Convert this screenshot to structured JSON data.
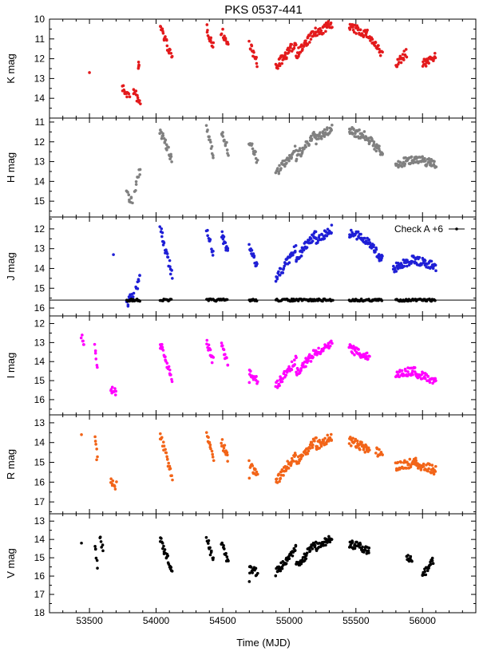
{
  "chart_data": {
    "type": "scatter",
    "title": "PKS 0537-441",
    "xlabel": "Time (MJD)",
    "xlim": [
      53200,
      56400
    ],
    "xticks": [
      53500,
      54000,
      54500,
      55000,
      55500,
      56000
    ],
    "panels": [
      {
        "id": "K",
        "ylabel": "K mag",
        "color": "#e31a1c",
        "ylim": [
          10,
          15
        ],
        "yticks": [
          10,
          11,
          12,
          13,
          14
        ],
        "segments": [
          {
            "x": [
              53870,
              53870
            ],
            "y": [
              12.3,
              12.3
            ]
          },
          {
            "x": [
              53745,
              53800
            ],
            "y": [
              13.5,
              13.9
            ]
          },
          {
            "x": [
              53830,
              53880
            ],
            "y": [
              13.6,
              14.3
            ]
          },
          {
            "x": [
              54030,
              54120
            ],
            "y": [
              10.3,
              12.0
            ]
          },
          {
            "x": [
              54380,
              54430
            ],
            "y": [
              10.4,
              11.4
            ]
          },
          {
            "x": [
              54490,
              54540
            ],
            "y": [
              10.6,
              11.3
            ]
          },
          {
            "x": [
              54700,
              54760
            ],
            "y": [
              11.2,
              12.3
            ]
          },
          {
            "x": [
              54900,
              55050
            ],
            "y": [
              12.4,
              11.2
            ]
          },
          {
            "x": [
              55050,
              55200
            ],
            "y": [
              11.8,
              10.6
            ]
          },
          {
            "x": [
              55200,
              55320
            ],
            "y": [
              10.8,
              10.2
            ]
          },
          {
            "x": [
              55450,
              55600
            ],
            "y": [
              10.4,
              10.8
            ]
          },
          {
            "x": [
              55600,
              55700
            ],
            "y": [
              10.9,
              11.8
            ]
          },
          {
            "x": [
              55800,
              55880
            ],
            "y": [
              12.3,
              11.7
            ]
          },
          {
            "x": [
              56000,
              56100
            ],
            "y": [
              12.3,
              11.8
            ]
          }
        ],
        "points": [
          [
            53500,
            12.7
          ]
        ]
      },
      {
        "id": "H",
        "ylabel": "H mag",
        "color": "#808080",
        "ylim": [
          10.8,
          15.8
        ],
        "yticks": [
          11,
          12,
          13,
          14,
          15
        ],
        "segments": [
          {
            "x": [
              53780,
              53820
            ],
            "y": [
              14.6,
              15.1
            ]
          },
          {
            "x": [
              53840,
              53880
            ],
            "y": [
              14.5,
              13.3
            ]
          },
          {
            "x": [
              54030,
              54120
            ],
            "y": [
              11.4,
              13.0
            ]
          },
          {
            "x": [
              54380,
              54430
            ],
            "y": [
              11.3,
              12.6
            ]
          },
          {
            "x": [
              54490,
              54540
            ],
            "y": [
              11.5,
              12.5
            ]
          },
          {
            "x": [
              54700,
              54760
            ],
            "y": [
              12.0,
              12.9
            ]
          },
          {
            "x": [
              54900,
              55050
            ],
            "y": [
              13.6,
              12.4
            ]
          },
          {
            "x": [
              55050,
              55200
            ],
            "y": [
              12.8,
              11.6
            ]
          },
          {
            "x": [
              55200,
              55320
            ],
            "y": [
              11.9,
              11.3
            ]
          },
          {
            "x": [
              55450,
              55600
            ],
            "y": [
              11.4,
              11.8
            ]
          },
          {
            "x": [
              55600,
              55700
            ],
            "y": [
              11.9,
              12.6
            ]
          },
          {
            "x": [
              55800,
              55950
            ],
            "y": [
              13.2,
              12.8
            ]
          },
          {
            "x": [
              55950,
              56100
            ],
            "y": [
              12.9,
              13.1
            ]
          }
        ],
        "points": []
      },
      {
        "id": "J",
        "ylabel": "J mag",
        "color": "#1f1fd6",
        "ylim": [
          11.4,
          16.4
        ],
        "yticks": [
          12,
          13,
          14,
          15,
          16
        ],
        "segments": [
          {
            "x": [
              53780,
              53830
            ],
            "y": [
              15.8,
              15.3
            ]
          },
          {
            "x": [
              53850,
              53880
            ],
            "y": [
              15.0,
              14.3
            ]
          },
          {
            "x": [
              54030,
              54120
            ],
            "y": [
              12.0,
              14.3
            ]
          },
          {
            "x": [
              54380,
              54430
            ],
            "y": [
              12.0,
              13.3
            ]
          },
          {
            "x": [
              54490,
              54540
            ],
            "y": [
              12.2,
              13.2
            ]
          },
          {
            "x": [
              54700,
              54760
            ],
            "y": [
              12.9,
              13.9
            ]
          },
          {
            "x": [
              54900,
              55050
            ],
            "y": [
              14.5,
              13.0
            ]
          },
          {
            "x": [
              55050,
              55200
            ],
            "y": [
              13.5,
              12.2
            ]
          },
          {
            "x": [
              55200,
              55320
            ],
            "y": [
              12.6,
              12.0
            ]
          },
          {
            "x": [
              55450,
              55600
            ],
            "y": [
              12.2,
              12.6
            ]
          },
          {
            "x": [
              55600,
              55700
            ],
            "y": [
              12.7,
              13.6
            ]
          },
          {
            "x": [
              55780,
              55950
            ],
            "y": [
              14.0,
              13.5
            ]
          },
          {
            "x": [
              55950,
              56100
            ],
            "y": [
              13.6,
              13.9
            ]
          }
        ],
        "points": [
          [
            53680,
            13.3
          ]
        ],
        "reference_line": 15.6,
        "check_star": {
          "label": "Check A +6",
          "color": "#000000",
          "y": 15.6,
          "ranges": [
            [
              53780,
              53880
            ],
            [
              54030,
              54120
            ],
            [
              54380,
              54540
            ],
            [
              54700,
              54760
            ],
            [
              54900,
              55330
            ],
            [
              55450,
              55700
            ],
            [
              55800,
              56100
            ]
          ]
        }
      },
      {
        "id": "I",
        "ylabel": "I mag",
        "color": "#ff00ff",
        "ylim": [
          11.6,
          16.8
        ],
        "yticks": [
          12,
          13,
          14,
          15,
          16
        ],
        "segments": [
          {
            "x": [
              53440,
              53460
            ],
            "y": [
              12.7,
              13.0
            ]
          },
          {
            "x": [
              53540,
              53560
            ],
            "y": [
              13.3,
              14.4
            ]
          },
          {
            "x": [
              53660,
              53700
            ],
            "y": [
              15.4,
              15.7
            ]
          },
          {
            "x": [
              54030,
              54120
            ],
            "y": [
              13.0,
              15.0
            ]
          },
          {
            "x": [
              54380,
              54430
            ],
            "y": [
              13.0,
              14.0
            ]
          },
          {
            "x": [
              54490,
              54540
            ],
            "y": [
              13.2,
              14.1
            ]
          },
          {
            "x": [
              54700,
              54760
            ],
            "y": [
              14.5,
              15.0
            ]
          },
          {
            "x": [
              54900,
              55050
            ],
            "y": [
              15.3,
              13.9
            ]
          },
          {
            "x": [
              55050,
              55200
            ],
            "y": [
              14.6,
              13.5
            ]
          },
          {
            "x": [
              55200,
              55320
            ],
            "y": [
              13.6,
              13.1
            ]
          },
          {
            "x": [
              55450,
              55600
            ],
            "y": [
              13.3,
              13.8
            ]
          },
          {
            "x": [
              55800,
              55950
            ],
            "y": [
              14.6,
              14.5
            ]
          },
          {
            "x": [
              55950,
              56100
            ],
            "y": [
              14.6,
              15.0
            ]
          }
        ],
        "points": [
          [
            54700,
            15.1
          ]
        ]
      },
      {
        "id": "R",
        "ylabel": "R mag",
        "color": "#f26418",
        "ylim": [
          12.6,
          17.6
        ],
        "yticks": [
          13,
          14,
          15,
          16,
          17
        ],
        "segments": [
          {
            "x": [
              53540,
              53560
            ],
            "y": [
              13.7,
              14.9
            ]
          },
          {
            "x": [
              53660,
              53700
            ],
            "y": [
              15.9,
              16.2
            ]
          },
          {
            "x": [
              54030,
              54120
            ],
            "y": [
              13.5,
              15.8
            ]
          },
          {
            "x": [
              54380,
              54430
            ],
            "y": [
              13.7,
              14.7
            ]
          },
          {
            "x": [
              54490,
              54540
            ],
            "y": [
              13.9,
              14.8
            ]
          },
          {
            "x": [
              54700,
              54760
            ],
            "y": [
              15.1,
              15.6
            ]
          },
          {
            "x": [
              54900,
              55050
            ],
            "y": [
              16.0,
              14.6
            ]
          },
          {
            "x": [
              55050,
              55200
            ],
            "y": [
              15.0,
              13.9
            ]
          },
          {
            "x": [
              55200,
              55320
            ],
            "y": [
              14.2,
              13.7
            ]
          },
          {
            "x": [
              55450,
              55600
            ],
            "y": [
              13.9,
              14.4
            ]
          },
          {
            "x": [
              55650,
              55700
            ],
            "y": [
              14.4,
              14.7
            ]
          },
          {
            "x": [
              55800,
              55950
            ],
            "y": [
              15.2,
              15.0
            ]
          },
          {
            "x": [
              55950,
              56100
            ],
            "y": [
              15.1,
              15.4
            ]
          }
        ],
        "points": [
          [
            53440,
            13.6
          ],
          [
            54700,
            15.8
          ]
        ]
      },
      {
        "id": "V",
        "ylabel": "V mag",
        "color": "#000000",
        "ylim": [
          12.6,
          18.0
        ],
        "yticks": [
          13,
          14,
          15,
          16,
          17,
          18
        ],
        "segments": [
          {
            "x": [
              53540,
              53560
            ],
            "y": [
              14.2,
              15.5
            ]
          },
          {
            "x": [
              53580,
              53600
            ],
            "y": [
              14.0,
              14.4
            ]
          },
          {
            "x": [
              54030,
              54120
            ],
            "y": [
              13.9,
              15.8
            ]
          },
          {
            "x": [
              54380,
              54430
            ],
            "y": [
              13.8,
              15.2
            ]
          },
          {
            "x": [
              54490,
              54540
            ],
            "y": [
              14.1,
              15.3
            ]
          },
          {
            "x": [
              54700,
              54760
            ],
            "y": [
              15.6,
              15.8
            ]
          },
          {
            "x": [
              54900,
              55050
            ],
            "y": [
              15.8,
              14.5
            ]
          },
          {
            "x": [
              55050,
              55200
            ],
            "y": [
              15.5,
              14.2
            ]
          },
          {
            "x": [
              55200,
              55320
            ],
            "y": [
              14.5,
              13.9
            ]
          },
          {
            "x": [
              55450,
              55600
            ],
            "y": [
              14.2,
              14.6
            ]
          },
          {
            "x": [
              55880,
              55920
            ],
            "y": [
              14.9,
              15.1
            ]
          },
          {
            "x": [
              56000,
              56080
            ],
            "y": [
              16.0,
              15.2
            ]
          }
        ],
        "points": [
          [
            53440,
            14.2
          ],
          [
            54700,
            16.3
          ]
        ]
      }
    ]
  }
}
